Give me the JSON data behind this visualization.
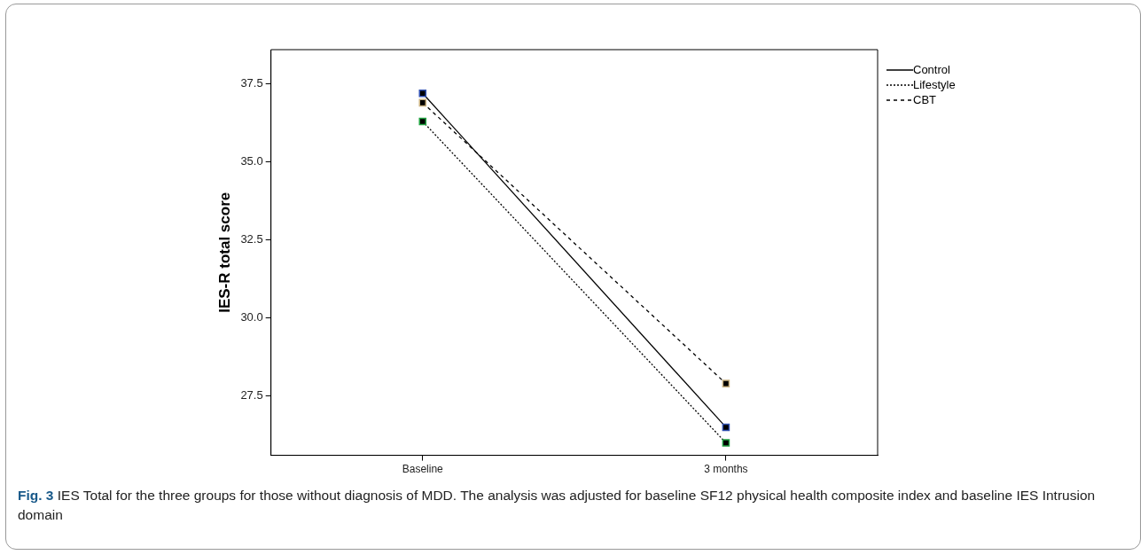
{
  "chart_data": {
    "type": "line",
    "ylabel": "IES-R total score",
    "categories": [
      "Baseline",
      "3 months"
    ],
    "series": [
      {
        "name": "Control",
        "color": "#000000",
        "values": [
          37.2,
          26.5
        ],
        "line_style": "solid"
      },
      {
        "name": "Lifestyle",
        "color": "#000000",
        "values": [
          36.3,
          26.0
        ],
        "line_style": "dotted"
      },
      {
        "name": "CBT",
        "color": "#000000",
        "values": [
          36.9,
          27.9
        ],
        "line_style": "dashed"
      }
    ],
    "ylim": [
      25.6,
      38.6
    ],
    "yticks": [
      {
        "value": 27.5,
        "label": "27.5"
      },
      {
        "value": 30,
        "label": "30.0"
      },
      {
        "value": 32.5,
        "label": "32.5"
      },
      {
        "value": 35,
        "label": "35.0"
      },
      {
        "value": 37.5,
        "label": "37.5"
      }
    ],
    "grid": false,
    "legend": "right",
    "marker": "square",
    "annotations": [
      "Fig. 3 IES Total for the three groups for those without diagnosis of MDD. The analysis was adjusted for baseline SF12 physical health composite index and baseline IES Intrusion domain"
    ]
  }
}
